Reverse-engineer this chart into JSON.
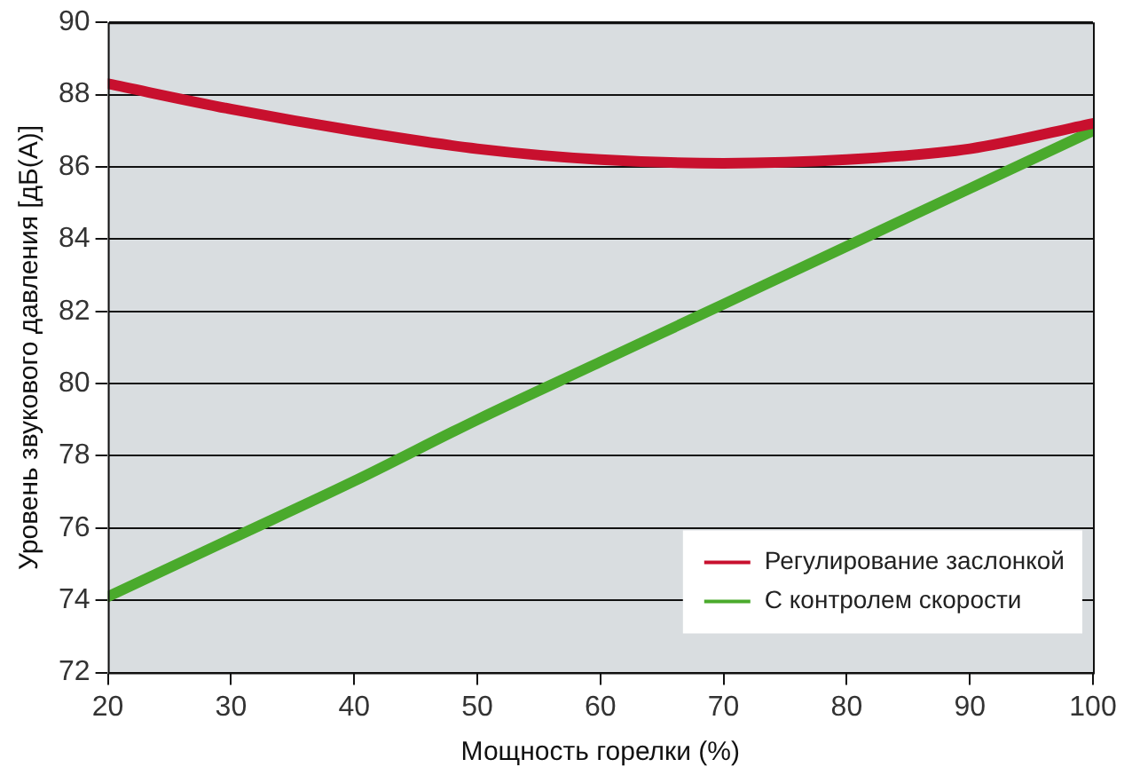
{
  "chart_data": {
    "type": "line",
    "xlabel": "Мощность горелки (%)",
    "ylabel": "Уровень звукового давления [дБ(А)]",
    "x": [
      20,
      30,
      40,
      50,
      60,
      70,
      80,
      90,
      100
    ],
    "series": [
      {
        "name": "Регулирование заслонкой",
        "color": "#c8102e",
        "values": [
          88.3,
          87.6,
          87.0,
          86.5,
          86.2,
          86.1,
          86.2,
          86.5,
          87.2
        ]
      },
      {
        "name": "С контролем скорости",
        "color": "#4aaa2c",
        "values": [
          74.1,
          75.7,
          77.3,
          79.0,
          80.6,
          82.2,
          83.8,
          85.4,
          87.0
        ]
      }
    ],
    "xlim": [
      20,
      100
    ],
    "xticks": [
      20,
      30,
      40,
      50,
      60,
      70,
      80,
      90,
      100
    ],
    "ylim": [
      72,
      90
    ],
    "yticks": [
      72,
      74,
      76,
      78,
      80,
      82,
      84,
      86,
      88,
      90
    ],
    "grid": "y",
    "legend": "bottom right",
    "marker": "none",
    "line_style": "solid"
  }
}
